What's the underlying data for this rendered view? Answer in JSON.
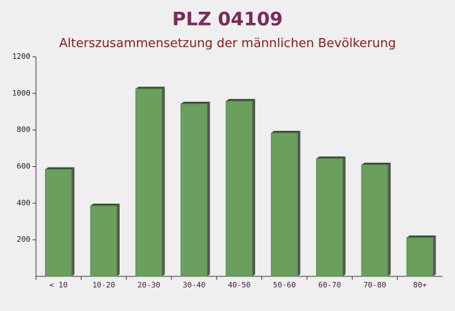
{
  "chart_data": {
    "type": "bar",
    "title": "PLZ 04109",
    "subtitle": "Alterszusammensetzung der männlichen Bevölkerung",
    "categories": [
      "< 10",
      "10-20",
      "20-30",
      "30-40",
      "40-50",
      "50-60",
      "60-70",
      "70-80",
      "80+"
    ],
    "values": [
      585,
      386,
      1025,
      943,
      958,
      784,
      644,
      610,
      212
    ],
    "color": "#6a9f5e",
    "ylim": [
      0,
      1200
    ],
    "yticks": [
      200,
      400,
      600,
      800,
      1000,
      1200
    ],
    "grid": false
  }
}
